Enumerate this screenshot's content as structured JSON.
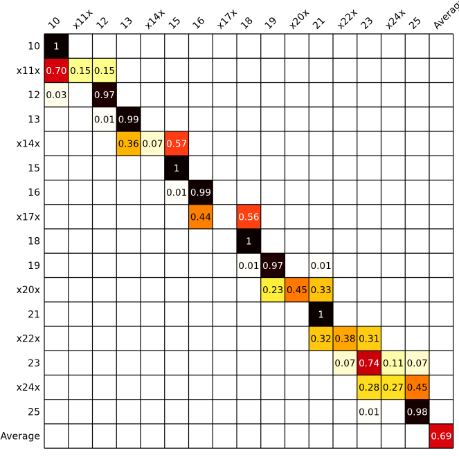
{
  "chart_data": {
    "type": "heatmap",
    "x_labels": [
      "10",
      "x11x",
      "12",
      "13",
      "x14x",
      "15",
      "16",
      "x17x",
      "18",
      "19",
      "x20x",
      "21",
      "x22x",
      "23",
      "x24x",
      "25",
      "Average"
    ],
    "y_labels": [
      "10",
      "x11x",
      "12",
      "13",
      "x14x",
      "15",
      "16",
      "x17x",
      "18",
      "19",
      "x20x",
      "21",
      "x22x",
      "23",
      "x24x",
      "25",
      "Average"
    ],
    "grid": true,
    "colormap": "hot_r",
    "cells": [
      {
        "row": 0,
        "col": 0,
        "value": 1,
        "label": "1"
      },
      {
        "row": 1,
        "col": 0,
        "value": 0.7,
        "label": "0.70"
      },
      {
        "row": 1,
        "col": 1,
        "value": 0.15,
        "label": "0.15"
      },
      {
        "row": 1,
        "col": 2,
        "value": 0.15,
        "label": "0.15"
      },
      {
        "row": 2,
        "col": 0,
        "value": 0.03,
        "label": "0.03"
      },
      {
        "row": 2,
        "col": 2,
        "value": 0.97,
        "label": "0.97"
      },
      {
        "row": 3,
        "col": 2,
        "value": 0.01,
        "label": "0.01"
      },
      {
        "row": 3,
        "col": 3,
        "value": 0.99,
        "label": "0.99"
      },
      {
        "row": 4,
        "col": 3,
        "value": 0.36,
        "label": "0.36"
      },
      {
        "row": 4,
        "col": 4,
        "value": 0.07,
        "label": "0.07"
      },
      {
        "row": 4,
        "col": 5,
        "value": 0.57,
        "label": "0.57"
      },
      {
        "row": 5,
        "col": 5,
        "value": 1,
        "label": "1"
      },
      {
        "row": 6,
        "col": 5,
        "value": 0.01,
        "label": "0.01"
      },
      {
        "row": 6,
        "col": 6,
        "value": 0.99,
        "label": "0.99"
      },
      {
        "row": 7,
        "col": 6,
        "value": 0.44,
        "label": "0.44"
      },
      {
        "row": 7,
        "col": 8,
        "value": 0.56,
        "label": "0.56"
      },
      {
        "row": 8,
        "col": 8,
        "value": 1,
        "label": "1"
      },
      {
        "row": 9,
        "col": 8,
        "value": 0.01,
        "label": "0.01"
      },
      {
        "row": 9,
        "col": 9,
        "value": 0.97,
        "label": "0.97"
      },
      {
        "row": 9,
        "col": 11,
        "value": 0.01,
        "label": "0.01"
      },
      {
        "row": 10,
        "col": 9,
        "value": 0.23,
        "label": "0.23"
      },
      {
        "row": 10,
        "col": 10,
        "value": 0.45,
        "label": "0.45"
      },
      {
        "row": 10,
        "col": 11,
        "value": 0.33,
        "label": "0.33"
      },
      {
        "row": 11,
        "col": 11,
        "value": 1,
        "label": "1"
      },
      {
        "row": 12,
        "col": 11,
        "value": 0.32,
        "label": "0.32"
      },
      {
        "row": 12,
        "col": 12,
        "value": 0.38,
        "label": "0.38"
      },
      {
        "row": 12,
        "col": 13,
        "value": 0.31,
        "label": "0.31"
      },
      {
        "row": 13,
        "col": 12,
        "value": 0.07,
        "label": "0.07"
      },
      {
        "row": 13,
        "col": 13,
        "value": 0.74,
        "label": "0.74"
      },
      {
        "row": 13,
        "col": 14,
        "value": 0.11,
        "label": "0.11"
      },
      {
        "row": 13,
        "col": 15,
        "value": 0.07,
        "label": "0.07"
      },
      {
        "row": 14,
        "col": 13,
        "value": 0.28,
        "label": "0.28"
      },
      {
        "row": 14,
        "col": 14,
        "value": 0.27,
        "label": "0.27"
      },
      {
        "row": 14,
        "col": 15,
        "value": 0.45,
        "label": "0.45"
      },
      {
        "row": 15,
        "col": 13,
        "value": 0.01,
        "label": "0.01"
      },
      {
        "row": 15,
        "col": 15,
        "value": 0.98,
        "label": "0.98"
      },
      {
        "row": 16,
        "col": 16,
        "value": 0.69,
        "label": "0.69"
      }
    ]
  }
}
